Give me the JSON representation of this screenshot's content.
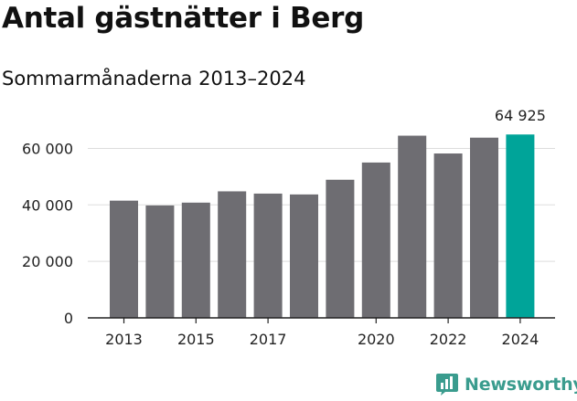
{
  "chart_data": {
    "type": "bar",
    "title": "Antal gästnätter i Berg",
    "subtitle": "Sommarmånaderna 2013–2024",
    "x": [
      2013,
      2014,
      2015,
      2016,
      2017,
      2018,
      2019,
      2020,
      2021,
      2022,
      2023,
      2024
    ],
    "values": [
      41500,
      39800,
      40800,
      44800,
      44000,
      43700,
      48900,
      55000,
      64500,
      58200,
      63800,
      64925
    ],
    "x_tick_labels": [
      "2013",
      "2015",
      "2017",
      "2020",
      "2022",
      "2024"
    ],
    "x_tick_values": [
      2013,
      2015,
      2017,
      2020,
      2022,
      2024
    ],
    "y_tick_labels": [
      "0",
      "20 000",
      "40 000",
      "60 000"
    ],
    "y_tick_values": [
      0,
      20000,
      40000,
      60000
    ],
    "ylim": [
      0,
      65000
    ],
    "highlight": {
      "x": 2024,
      "label": "64 925"
    },
    "grid": true,
    "colors": {
      "bar": "#6e6d72",
      "highlight": "#00a499",
      "grid": "#dddddd",
      "axis": "#222222"
    }
  },
  "brand": {
    "name": "Newsworthy",
    "icon": "newsworthy-chart-logo-icon",
    "color": "#3a9c8e"
  }
}
